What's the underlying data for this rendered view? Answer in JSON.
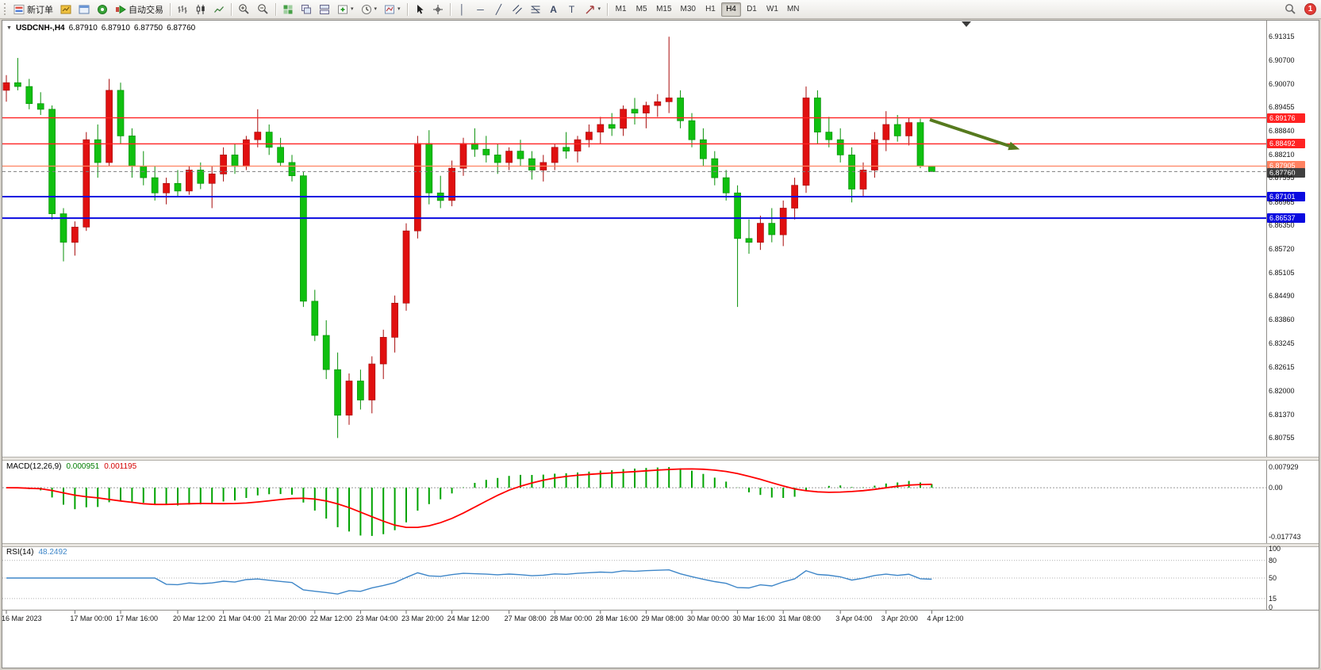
{
  "toolbar": {
    "new_order_label": "新订单",
    "autotrading_label": "自动交易",
    "timeframes": [
      "M1",
      "M5",
      "M15",
      "M30",
      "H1",
      "H4",
      "D1",
      "W1",
      "MN"
    ],
    "active_timeframe": "H4",
    "badge_count": "1"
  },
  "icons": {
    "title_caret": "▼",
    "dropdown_caret": "▾",
    "text_tool": "A",
    "label_tool": "T",
    "vline_tool": "│",
    "hline_tool": "─",
    "trend_tool": "╱",
    "crosshair_tool": "+"
  },
  "chart_title": {
    "symbol": "USDCNH-,H4",
    "open": "6.87910",
    "high": "6.87910",
    "low": "6.87750",
    "close": "6.87760"
  },
  "indicators": {
    "macd": {
      "name": "MACD(12,26,9)",
      "value_main": "0.000951",
      "value_signal": "0.001195",
      "axis_top": "0.007929",
      "axis_zero": "0.00",
      "axis_bottom": "-0.017743",
      "hist_color": "#00a300",
      "signal_color": "#ff0000"
    },
    "rsi": {
      "name": "RSI(14)",
      "value": "48.2492",
      "line_color": "#3e86c8",
      "levels": [
        80,
        50,
        15
      ],
      "axis_labels": [
        "100",
        "80",
        "50",
        "15",
        "0"
      ]
    }
  },
  "chart_data": {
    "type": "candlestick",
    "symbol": "USDCNH-",
    "timeframe": "H4",
    "title": "USDCNH-,H4 6.87910 6.87910 6.87750 6.87760",
    "ylim": [
      6.803,
      6.9165
    ],
    "grid": false,
    "colors": {
      "up": "#e01010",
      "up_border": "#a80c0c",
      "down": "#10c010",
      "down_border": "#089008",
      "background": "#ffffff"
    },
    "price_axis": [
      "6.91315",
      "6.90700",
      "6.90070",
      "6.89455",
      "6.88840",
      "6.88210",
      "6.87595",
      "6.86965",
      "6.86350",
      "6.85720",
      "6.85105",
      "6.84490",
      "6.83860",
      "6.83245",
      "6.82615",
      "6.82000",
      "6.81370",
      "6.80755"
    ],
    "hlines": [
      {
        "price": 6.89176,
        "label": "6.89176",
        "color": "#ff2222",
        "width": 1.4
      },
      {
        "price": 6.88492,
        "label": "6.88492",
        "color": "#ff2222",
        "width": 1.4
      },
      {
        "price": 6.87905,
        "label": "6.87905",
        "color": "#ff8261",
        "width": 1.2
      },
      {
        "price": 6.87101,
        "label": "6.87101",
        "color": "#0a0ae0",
        "width": 2
      },
      {
        "price": 6.86537,
        "label": "6.86537",
        "color": "#0a0ae0",
        "width": 2
      }
    ],
    "bid": {
      "price": 6.8776,
      "label": "6.87760",
      "label_bg": "#3f3f3f"
    },
    "arrow": {
      "color": "#567a1e",
      "from_price": 6.892,
      "to_price": 6.885
    },
    "time_labels": [
      [
        "16 Mar 2023",
        0
      ],
      [
        "17 Mar 00:00",
        6
      ],
      [
        "17 Mar 16:00",
        10
      ],
      [
        "20 Mar 12:00",
        15
      ],
      [
        "21 Mar 04:00",
        19
      ],
      [
        "21 Mar 20:00",
        23
      ],
      [
        "22 Mar 12:00",
        27
      ],
      [
        "23 Mar 04:00",
        31
      ],
      [
        "23 Mar 20:00",
        35
      ],
      [
        "24 Mar 12:00",
        39
      ],
      [
        "27 Mar 08:00",
        44
      ],
      [
        "28 Mar 00:00",
        48
      ],
      [
        "28 Mar 16:00",
        52
      ],
      [
        "29 Mar 08:00",
        56
      ],
      [
        "30 Mar 00:00",
        60
      ],
      [
        "30 Mar 16:00",
        64
      ],
      [
        "31 Mar 08:00",
        68
      ],
      [
        "3 Apr 04:00",
        73
      ],
      [
        "3 Apr 20:00",
        77
      ],
      [
        "4 Apr 12:00",
        81
      ]
    ],
    "ohlc": [
      [
        6.899,
        6.903,
        6.896,
        6.901
      ],
      [
        6.901,
        6.9075,
        6.899,
        6.9
      ],
      [
        6.9,
        6.902,
        6.894,
        6.8955
      ],
      [
        6.8955,
        6.8985,
        6.8925,
        6.894
      ],
      [
        6.894,
        6.895,
        6.865,
        6.8665
      ],
      [
        6.8665,
        6.868,
        6.854,
        6.859
      ],
      [
        6.859,
        6.8645,
        6.8555,
        6.863
      ],
      [
        6.863,
        6.888,
        6.862,
        6.886
      ],
      [
        6.886,
        6.89,
        6.876,
        6.88
      ],
      [
        6.88,
        6.902,
        6.879,
        6.899
      ],
      [
        6.899,
        6.901,
        6.885,
        6.887
      ],
      [
        6.887,
        6.889,
        6.876,
        6.879
      ],
      [
        6.879,
        6.883,
        6.874,
        6.876
      ],
      [
        6.876,
        6.879,
        6.87,
        6.872
      ],
      [
        6.872,
        6.876,
        6.869,
        6.8745
      ],
      [
        6.8745,
        6.878,
        6.871,
        6.8725
      ],
      [
        6.8725,
        6.879,
        6.8715,
        6.878
      ],
      [
        6.878,
        6.88,
        6.873,
        6.8745
      ],
      [
        6.8745,
        6.879,
        6.868,
        6.877
      ],
      [
        6.877,
        6.884,
        6.875,
        6.882
      ],
      [
        6.882,
        6.885,
        6.877,
        6.879
      ],
      [
        6.879,
        6.887,
        6.878,
        6.886
      ],
      [
        6.886,
        6.894,
        6.884,
        6.888
      ],
      [
        6.888,
        6.89,
        6.882,
        6.884
      ],
      [
        6.884,
        6.8865,
        6.879,
        6.88
      ],
      [
        6.88,
        6.882,
        6.875,
        6.8765
      ],
      [
        6.8765,
        6.8775,
        6.842,
        6.8435
      ],
      [
        6.8435,
        6.8465,
        6.833,
        6.8345
      ],
      [
        6.8345,
        6.8385,
        6.823,
        6.8255
      ],
      [
        6.8255,
        6.83,
        6.8075,
        6.8135
      ],
      [
        6.8135,
        6.8245,
        6.811,
        6.8225
      ],
      [
        6.8225,
        6.8255,
        6.815,
        6.8175
      ],
      [
        6.8175,
        6.829,
        6.814,
        6.827
      ],
      [
        6.827,
        6.836,
        6.823,
        6.834
      ],
      [
        6.834,
        6.845,
        6.83,
        6.843
      ],
      [
        6.843,
        6.864,
        6.841,
        6.862
      ],
      [
        6.862,
        6.887,
        6.86,
        6.885
      ],
      [
        6.885,
        6.8885,
        6.869,
        6.872
      ],
      [
        6.872,
        6.8765,
        6.868,
        6.87
      ],
      [
        6.87,
        6.8805,
        6.8685,
        6.8785
      ],
      [
        6.8785,
        6.8865,
        6.8765,
        6.885
      ],
      [
        6.885,
        6.889,
        6.8815,
        6.8835
      ],
      [
        6.8835,
        6.887,
        6.88,
        6.882
      ],
      [
        6.882,
        6.885,
        6.877,
        6.88
      ],
      [
        6.88,
        6.884,
        6.878,
        6.883
      ],
      [
        6.883,
        6.886,
        6.879,
        6.881
      ],
      [
        6.881,
        6.883,
        6.8755,
        6.878
      ],
      [
        6.878,
        6.882,
        6.875,
        6.88
      ],
      [
        6.88,
        6.885,
        6.878,
        6.884
      ],
      [
        6.884,
        6.888,
        6.881,
        6.883
      ],
      [
        6.883,
        6.887,
        6.88,
        6.886
      ],
      [
        6.886,
        6.89,
        6.884,
        6.888
      ],
      [
        6.888,
        6.892,
        6.885,
        6.89
      ],
      [
        6.89,
        6.893,
        6.887,
        6.889
      ],
      [
        6.889,
        6.895,
        6.887,
        6.894
      ],
      [
        6.894,
        6.897,
        6.89,
        6.893
      ],
      [
        6.893,
        6.896,
        6.889,
        6.895
      ],
      [
        6.895,
        6.898,
        6.892,
        6.896
      ],
      [
        6.896,
        6.9131,
        6.893,
        6.897
      ],
      [
        6.897,
        6.899,
        6.889,
        6.891
      ],
      [
        6.891,
        6.893,
        6.884,
        6.886
      ],
      [
        6.886,
        6.889,
        6.879,
        6.881
      ],
      [
        6.881,
        6.883,
        6.874,
        6.876
      ],
      [
        6.876,
        6.878,
        6.87,
        6.872
      ],
      [
        6.872,
        6.874,
        6.842,
        6.86
      ],
      [
        6.86,
        6.865,
        6.856,
        6.859
      ],
      [
        6.859,
        6.866,
        6.857,
        6.864
      ],
      [
        6.864,
        6.868,
        6.859,
        6.861
      ],
      [
        6.861,
        6.87,
        6.858,
        6.868
      ],
      [
        6.868,
        6.876,
        6.865,
        6.874
      ],
      [
        6.874,
        6.9,
        6.872,
        6.897
      ],
      [
        6.897,
        6.899,
        6.885,
        6.888
      ],
      [
        6.888,
        6.892,
        6.884,
        6.886
      ],
      [
        6.886,
        6.889,
        6.88,
        6.882
      ],
      [
        6.882,
        6.884,
        6.8695,
        6.873
      ],
      [
        6.873,
        6.88,
        6.871,
        6.878
      ],
      [
        6.878,
        6.888,
        6.876,
        6.886
      ],
      [
        6.886,
        6.8935,
        6.883,
        6.89
      ],
      [
        6.89,
        6.8925,
        6.8855,
        6.887
      ],
      [
        6.887,
        6.8918,
        6.8845,
        6.8905
      ],
      [
        6.8905,
        6.8915,
        6.8785,
        6.8791
      ],
      [
        6.8791,
        6.8791,
        6.8775,
        6.8776
      ]
    ]
  }
}
